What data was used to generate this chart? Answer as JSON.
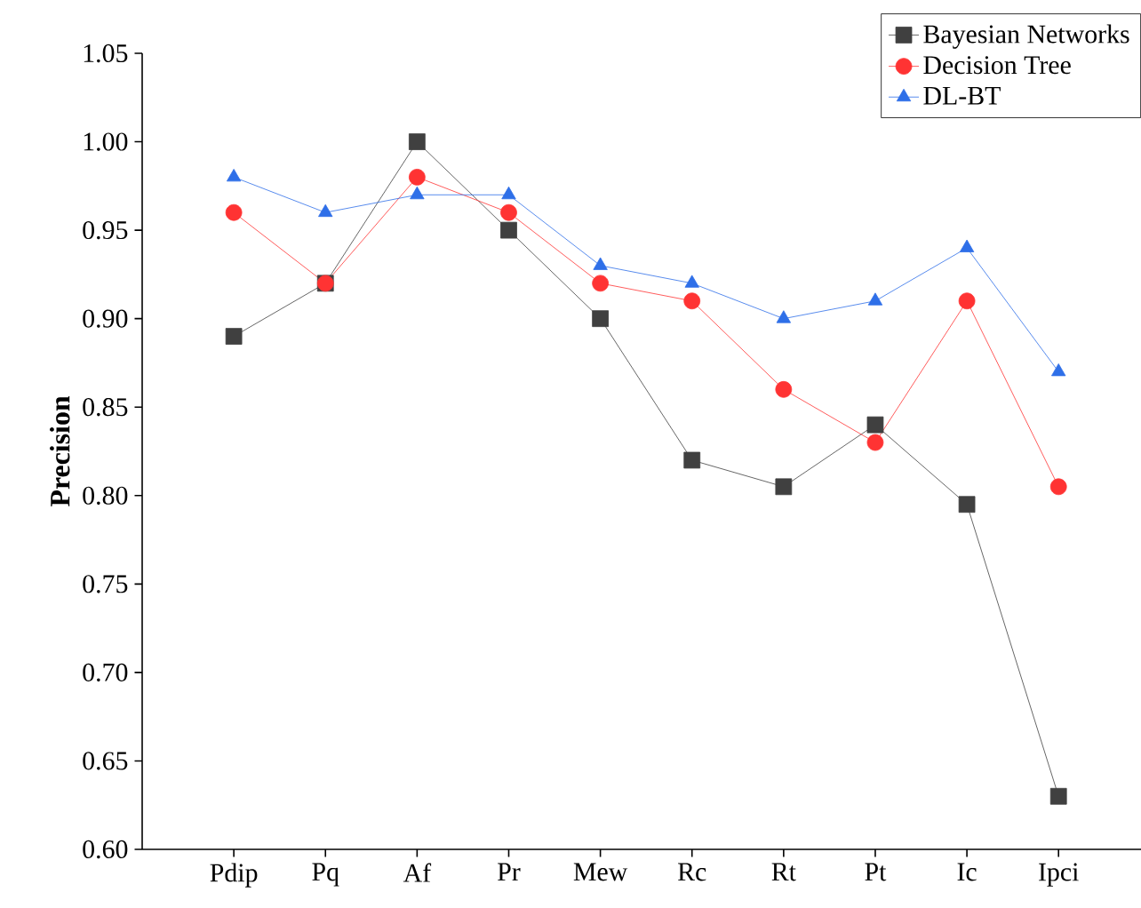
{
  "chart_data": {
    "type": "line",
    "ylabel": "Precision",
    "categories": [
      "Pdip",
      "Pq",
      "Af",
      "Pr",
      "Mew",
      "Rc",
      "Rt",
      "Pt",
      "Ic",
      "Ipci"
    ],
    "series": [
      {
        "name": "Bayesian Networks",
        "color": "#404040",
        "marker": "square",
        "values": [
          0.89,
          0.92,
          1.0,
          0.95,
          0.9,
          0.82,
          0.805,
          0.84,
          0.795,
          0.63
        ]
      },
      {
        "name": "Decision Tree",
        "color": "#ff3333",
        "marker": "circle",
        "values": [
          0.96,
          0.92,
          0.98,
          0.96,
          0.92,
          0.91,
          0.86,
          0.83,
          0.91,
          0.805
        ]
      },
      {
        "name": "DL-BT",
        "color": "#2e6fe8",
        "marker": "triangle",
        "values": [
          0.98,
          0.96,
          0.97,
          0.97,
          0.93,
          0.92,
          0.9,
          0.91,
          0.94,
          0.87
        ]
      }
    ],
    "ylim": [
      0.6,
      1.05
    ],
    "yticks": [
      {
        "value": 0.6,
        "label": "0.60"
      },
      {
        "value": 0.65,
        "label": "0.65"
      },
      {
        "value": 0.7,
        "label": "0.70"
      },
      {
        "value": 0.75,
        "label": "0.75"
      },
      {
        "value": 0.8,
        "label": "0.80"
      },
      {
        "value": 0.85,
        "label": "0.85"
      },
      {
        "value": 0.9,
        "label": "0.90"
      },
      {
        "value": 0.95,
        "label": "0.95"
      },
      {
        "value": 1.0,
        "label": "1.00"
      },
      {
        "value": 1.05,
        "label": "1.05"
      }
    ],
    "legend": "top right",
    "grid": false,
    "line_style": "solid"
  }
}
